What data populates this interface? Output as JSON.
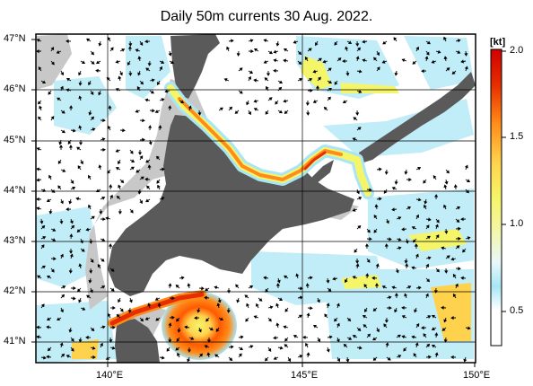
{
  "title": "Daily 50m currents 30 Aug. 2022.",
  "lat_labels": [
    "47°N",
    "46°N",
    "45°N",
    "44°N",
    "43°N",
    "42°N",
    "41°N"
  ],
  "lon_labels": [
    "140°E",
    "145°E",
    "150°E"
  ],
  "colorbar": {
    "unit": "[kt]",
    "ticks": [
      "2.0",
      "1.5",
      "1.0",
      "0.5"
    ],
    "colors": [
      "#ffffff",
      "#a8e6f5",
      "#ffffff",
      "#f5f56a",
      "#ffd24d",
      "#ff8c1a",
      "#e62e00",
      "#d10000"
    ]
  },
  "colors": {
    "land": "#5a5a5a",
    "shelf": "#c8c8c8",
    "ocean": "#ffffff",
    "grid": "#000000"
  }
}
